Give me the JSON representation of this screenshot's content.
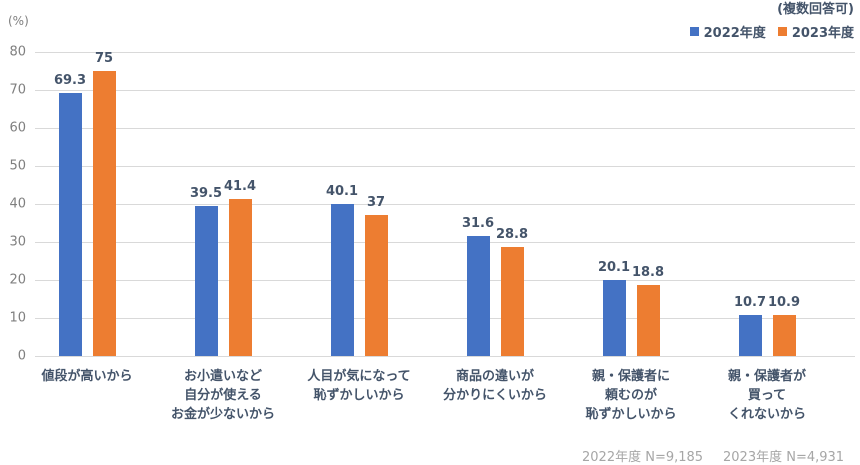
{
  "header": {
    "unit_label": "(%)",
    "note": "(複数回答可)"
  },
  "legend": [
    {
      "label": "2022年度",
      "color": "#4472c4"
    },
    {
      "label": "2023年度",
      "color": "#ed7d31"
    }
  ],
  "footnotes": {
    "n2022": "2022年度 N=9,185",
    "n2023": "2023年度 N=4,931"
  },
  "chart_data": {
    "type": "bar",
    "title": "",
    "xlabel": "",
    "ylabel": "(%)",
    "ylim": [
      0,
      80
    ],
    "yticks": [
      0,
      10,
      20,
      30,
      40,
      50,
      60,
      70,
      80
    ],
    "grid": true,
    "legend_position": "top-right",
    "categories": [
      "値段が高いから",
      "お小遣いなど\n自分が使える\nお金が少ないから",
      "人目が気になって\n恥ずかしいから",
      "商品の違いが\n分かりにくいから",
      "親・保護者に\n頼むのが\n恥ずかしいから",
      "親・保護者が\n買って\nくれないから"
    ],
    "series": [
      {
        "name": "2022年度",
        "color": "#4472c4",
        "values": [
          69.3,
          39.5,
          40.1,
          31.6,
          20.1,
          10.7
        ],
        "labels": [
          "69.3",
          "39.5",
          "40.1",
          "31.6",
          "20.1",
          "10.7"
        ]
      },
      {
        "name": "2023年度",
        "color": "#ed7d31",
        "values": [
          75,
          41.4,
          37,
          28.8,
          18.8,
          10.9
        ],
        "labels": [
          "75",
          "41.4",
          "37",
          "28.8",
          "18.8",
          "10.9"
        ]
      }
    ],
    "annotations": [
      "(複数回答可)",
      "2022年度 N=9,185",
      "2023年度 N=4,931"
    ]
  }
}
